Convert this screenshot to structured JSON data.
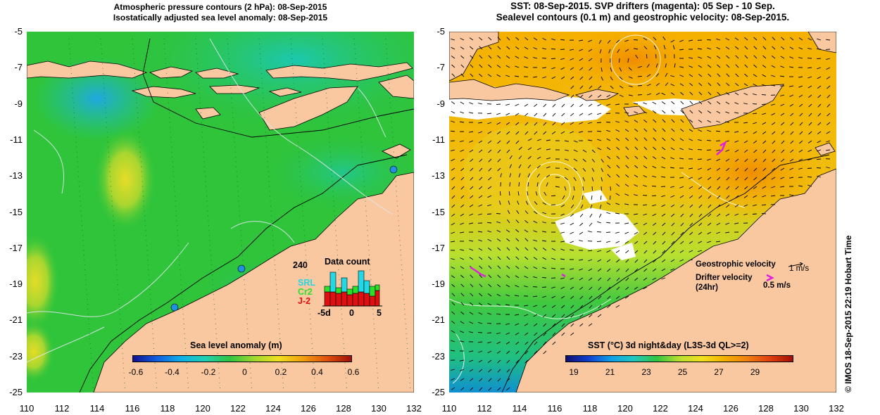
{
  "left_map": {
    "title_line1": "Atmospheric pressure contours (2 hPa): 08-Sep-2015",
    "title_line2": "Isostatically adjusted sea level anomaly: 08-Sep-2015",
    "colorbar_title": "Sea level anomaly (m)",
    "colorbar_ticks": [
      "-0.6",
      "-0.4",
      "-0.2",
      "0",
      "0.2",
      "0.4",
      "0.6"
    ],
    "inset": {
      "title": "Data count",
      "max_label": "240",
      "x_ticks": [
        "-5d",
        "0",
        "5"
      ],
      "series": [
        {
          "name": "SRL",
          "color": "#22d7e6"
        },
        {
          "name": "Cr2",
          "color": "#2be02b"
        },
        {
          "name": "J-2",
          "color": "#e01010"
        }
      ]
    }
  },
  "right_map": {
    "title_line1": "SST: 08-Sep-2015. SVP drifters (magenta): 05 Sep - 10 Sep.",
    "title_line2": "Sealevel contours (0.1 m) and geostrophic velocity: 08-Sep-2015.",
    "colorbar_title": "SST (°C) 3d night&day (L3S-3d QL>=2)",
    "colorbar_ticks": [
      "19",
      "21",
      "23",
      "25",
      "27",
      "29"
    ],
    "legend_geo_label": "Geostrophic velocity",
    "legend_geo_value": "1 m/s",
    "legend_drifter_label": "Drifter velocity",
    "legend_drifter_sub": "(24hr)",
    "legend_drifter_value": "0.5 m/s"
  },
  "axes": {
    "lat_ticks": [
      "-5",
      "-7",
      "-9",
      "-11",
      "-13",
      "-15",
      "-17",
      "-19",
      "-21",
      "-23",
      "-25"
    ],
    "lon_ticks": [
      "110",
      "112",
      "114",
      "116",
      "118",
      "120",
      "122",
      "124",
      "126",
      "128",
      "130",
      "132"
    ]
  },
  "credit": "© IMOS 18-Sep-2015 22:19 Hobart Time",
  "colors": {
    "land": "#f9c8a0",
    "accent_magenta": "#e020e0"
  }
}
